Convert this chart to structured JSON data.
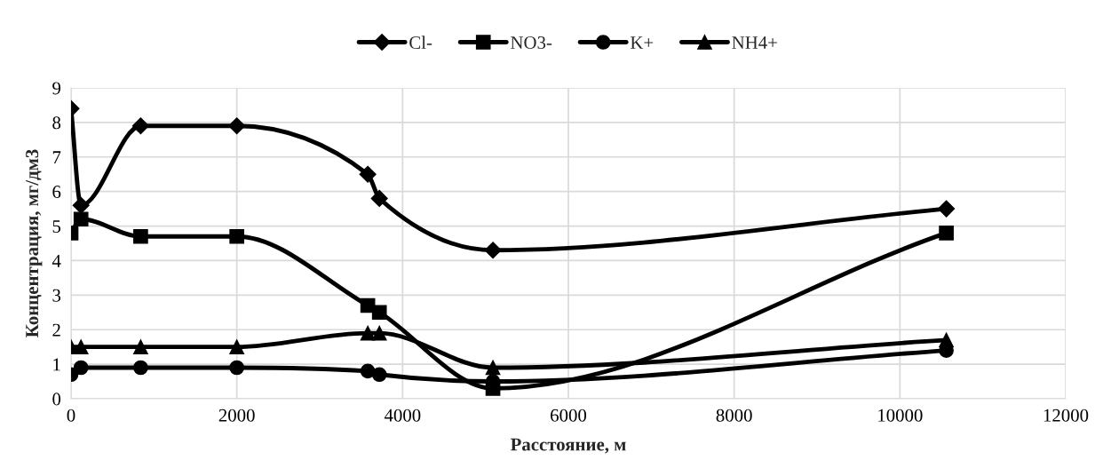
{
  "chart_data": {
    "type": "line",
    "xlabel": "Расстояние, м",
    "ylabel": "Концентрация, мг/дм3",
    "x": [
      0,
      120,
      840,
      2000,
      3580,
      3720,
      5090,
      10560
    ],
    "series": [
      {
        "name": "Cl-",
        "color": "#000000",
        "marker": "diamond",
        "values": [
          8.4,
          5.6,
          7.9,
          7.9,
          6.5,
          5.8,
          4.3,
          5.5
        ]
      },
      {
        "name": "NO3-",
        "color": "#000000",
        "marker": "square",
        "values": [
          4.8,
          5.2,
          4.7,
          4.7,
          2.7,
          2.5,
          0.3,
          4.8
        ]
      },
      {
        "name": "K+",
        "color": "#000000",
        "marker": "circle",
        "values": [
          0.7,
          0.9,
          0.9,
          0.9,
          0.8,
          0.7,
          0.5,
          1.4
        ]
      },
      {
        "name": "NH4+",
        "color": "#000000",
        "marker": "triangle",
        "values": [
          1.5,
          1.5,
          1.5,
          1.5,
          1.9,
          1.9,
          0.9,
          1.7
        ]
      }
    ],
    "xlim": [
      0,
      12000
    ],
    "xticks": [
      0,
      2000,
      4000,
      6000,
      8000,
      10000,
      12000
    ],
    "ylim": [
      0,
      9
    ],
    "yticks": [
      0,
      1,
      2,
      3,
      4,
      5,
      6,
      7,
      8,
      9
    ],
    "grid": true,
    "legend": "top",
    "line_style": "solid"
  }
}
